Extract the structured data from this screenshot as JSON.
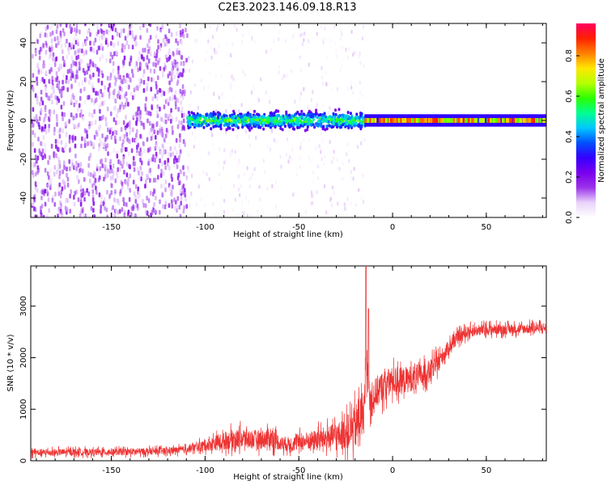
{
  "title": "C2E3.2023.146.09.18.R13",
  "colors": {
    "snr_line": "#ee3333",
    "colormap": [
      "#ffffff",
      "#e9d3fa",
      "#9b33ea",
      "#7a00ee",
      "#3500ff",
      "#0050ff",
      "#00c8ff",
      "#00ff90",
      "#2cff00",
      "#b6ff00",
      "#ffe600",
      "#ff8000",
      "#ff2000",
      "#ff0060"
    ]
  },
  "chart_data": [
    {
      "type": "heatmap",
      "xlabel": "Height of straight line (km)",
      "ylabel": "Frequency (Hz)",
      "xlim": [
        -193,
        82
      ],
      "ylim": [
        -50,
        50
      ],
      "xticks": [
        -150,
        -100,
        -50,
        0,
        50
      ],
      "yticks": [
        -40,
        -20,
        0,
        20,
        40
      ],
      "colorbar": {
        "label": "Normalized spectral amplitude",
        "range": [
          0,
          0.96
        ],
        "ticks": [
          "0.0",
          "0.2",
          "0.4",
          "0.6",
          "0.8"
        ]
      },
      "regions": [
        {
          "x": [
            -193,
            -110
          ],
          "freq_half_width": 50,
          "amplitude": [
            0.05,
            0.2
          ],
          "texture": "dense noise"
        },
        {
          "x": [
            -110,
            -88
          ],
          "freq_half_width": 50,
          "amplitude": [
            0.03,
            0.12
          ],
          "texture": "sparse noise"
        },
        {
          "x": [
            -110,
            -15
          ],
          "freq_half_width": 5,
          "amplitude": [
            0.2,
            0.65
          ],
          "texture": "signal band"
        },
        {
          "x": [
            -15,
            82
          ],
          "freq_half_width": 2,
          "amplitude": [
            0.6,
            0.92
          ],
          "texture": "narrow carrier"
        }
      ]
    },
    {
      "type": "line",
      "xlabel": "Height of straight line (km)",
      "ylabel": "SNR (10 * v/v)",
      "xlim": [
        -193,
        82
      ],
      "ylim": [
        0,
        3780
      ],
      "xticks": [
        -150,
        -100,
        -50,
        0,
        50
      ],
      "yticks": [
        0,
        1000,
        2000,
        3000
      ],
      "series": [
        {
          "x": [
            -193,
            -180,
            -170,
            -160,
            -150,
            -140,
            -130,
            -120,
            -110,
            -105,
            -100,
            -95,
            -90,
            -85,
            -80,
            -75,
            -70,
            -65,
            -60,
            -55,
            -50,
            -45,
            -40,
            -35,
            -30,
            -25,
            -20,
            -17,
            -15,
            -14,
            -13,
            -12,
            -10,
            -8,
            -5,
            0,
            5,
            10,
            15,
            20,
            25,
            30,
            35,
            40,
            50,
            60,
            70,
            82
          ],
          "values": [
            160,
            160,
            170,
            165,
            170,
            175,
            180,
            190,
            220,
            260,
            300,
            340,
            380,
            420,
            430,
            420,
            410,
            460,
            340,
            320,
            360,
            380,
            420,
            450,
            480,
            520,
            650,
            850,
            1000,
            2100,
            1700,
            1100,
            1250,
            1350,
            1450,
            1550,
            1550,
            1600,
            1650,
            1750,
            1950,
            2200,
            2400,
            2500,
            2550,
            2550,
            2560,
            2580
          ],
          "noise_amplitude": [
            120,
            120,
            120,
            120,
            120,
            120,
            120,
            120,
            130,
            150,
            200,
            260,
            300,
            340,
            350,
            330,
            340,
            380,
            260,
            260,
            290,
            320,
            360,
            400,
            460,
            560,
            760,
            820,
            800,
            850,
            760,
            650,
            580,
            560,
            550,
            500,
            480,
            460,
            420,
            380,
            320,
            250,
            220,
            200,
            190,
            180,
            180,
            190
          ]
        }
      ]
    }
  ]
}
